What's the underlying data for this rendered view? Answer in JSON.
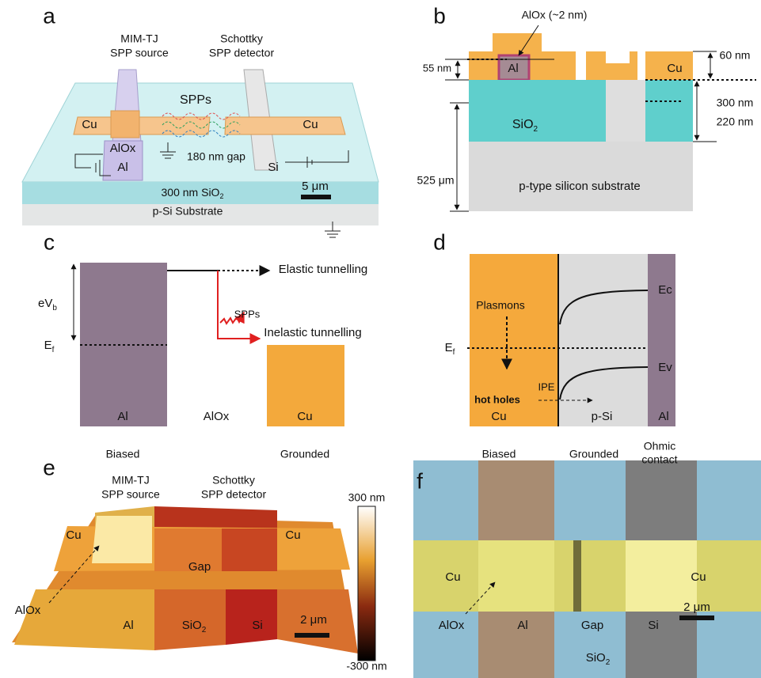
{
  "panels": {
    "a": {
      "label": "a",
      "source": [
        "MIM-TJ",
        "SPP source"
      ],
      "detector": [
        "Schottky",
        "SPP detector"
      ],
      "spps": "SPPs",
      "cu_left": "Cu",
      "cu_right": "Cu",
      "alox": "AlOx",
      "al": "Al",
      "gap": "180 nm gap",
      "si": "Si",
      "scale": "5 μm",
      "oxide": {
        "base": "300 nm SiO",
        "sub": "2"
      },
      "substrate": "p-Si Substrate"
    },
    "b": {
      "label": "b",
      "alox": "AlOx (~2 nm)",
      "al_thickness": "55 nm",
      "al": "Al",
      "cu": "Cu",
      "cu_thickness": "60 nm",
      "sio2": {
        "base": "SiO",
        "sub": "2"
      },
      "trench_depth": "300 nm",
      "oxide_thickness": "220 nm",
      "substrate_thickness": "525 μm",
      "substrate": "p-type silicon substrate"
    },
    "c": {
      "label": "c",
      "elastic": "Elastic tunnelling",
      "bias": {
        "base": "eV",
        "sub": "b"
      },
      "spps": "SPPs",
      "fermi": {
        "base": "E",
        "sub": "f"
      },
      "inelastic": "Inelastic tunnelling",
      "al": "Al",
      "alox": "AlOx",
      "cu": "Cu",
      "biased": "Biased",
      "grounded": "Grounded"
    },
    "d": {
      "label": "d",
      "ec": "Ec",
      "plasmons": "Plasmons",
      "fermi": {
        "base": "E",
        "sub": "f"
      },
      "ev": "Ev",
      "ipe": "IPE",
      "hot_holes": "hot holes",
      "cu": "Cu",
      "psi": "p-Si",
      "al": "Al",
      "biased": "Biased",
      "grounded": "Grounded",
      "ohmic": [
        "Ohmic",
        "contact"
      ]
    },
    "e": {
      "label": "e",
      "source": [
        "MIM-TJ",
        "SPP source"
      ],
      "detector": [
        "Schottky",
        "SPP detector"
      ],
      "colorbar_max": "300 nm",
      "colorbar_min": "-300 nm",
      "cu_left": "Cu",
      "cu_right": "Cu",
      "gap": "Gap",
      "alox": "AlOx",
      "al": "Al",
      "sio2": {
        "base": "SiO",
        "sub": "2"
      },
      "si": "Si",
      "scale": "2 μm"
    },
    "f": {
      "label": "f",
      "cu_left": "Cu",
      "cu_right": "Cu",
      "alox": "AlOx",
      "al": "Al",
      "gap": "Gap",
      "si": "Si",
      "scale": "2 μm",
      "sio2": {
        "base": "SiO",
        "sub": "2"
      }
    }
  }
}
